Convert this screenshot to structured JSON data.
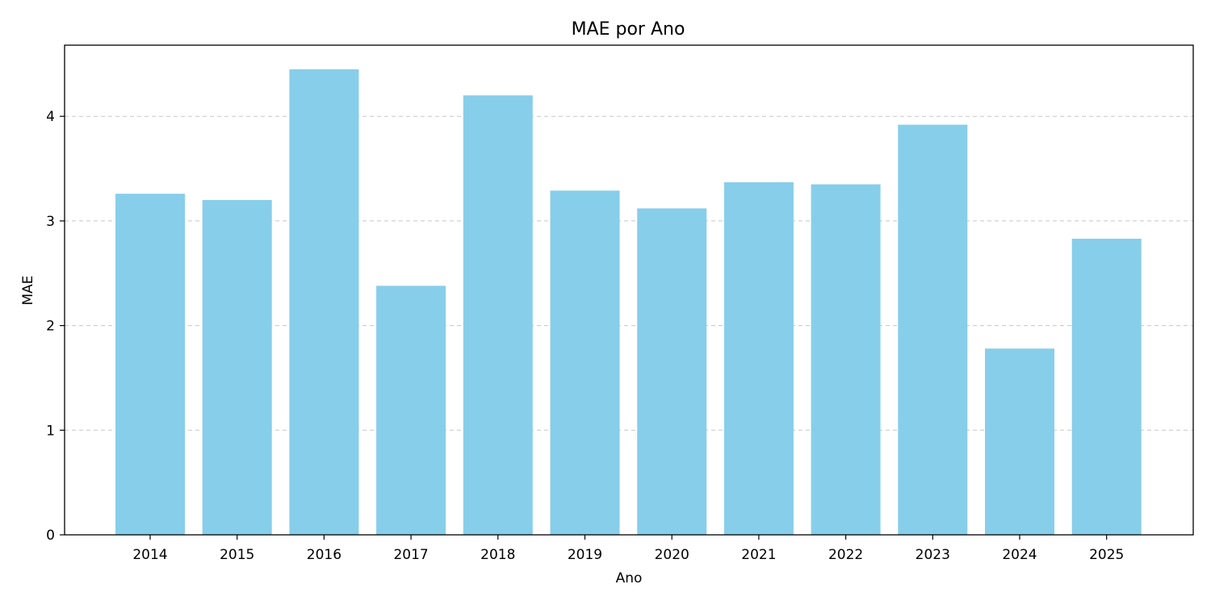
{
  "chart_data": {
    "type": "bar",
    "title": "MAE por Ano",
    "xlabel": "Ano",
    "ylabel": "MAE",
    "categories": [
      "2014",
      "2015",
      "2016",
      "2017",
      "2018",
      "2019",
      "2020",
      "2021",
      "2022",
      "2023",
      "2024",
      "2025"
    ],
    "values": [
      3.26,
      3.2,
      4.45,
      2.38,
      4.2,
      3.29,
      3.12,
      3.37,
      3.35,
      3.92,
      1.78,
      2.83
    ],
    "ylim": [
      0,
      4.68
    ],
    "yticks": [
      "0",
      "1",
      "2",
      "3",
      "4"
    ],
    "grid": "y-dashed",
    "bar_color": "#87ceeb"
  }
}
